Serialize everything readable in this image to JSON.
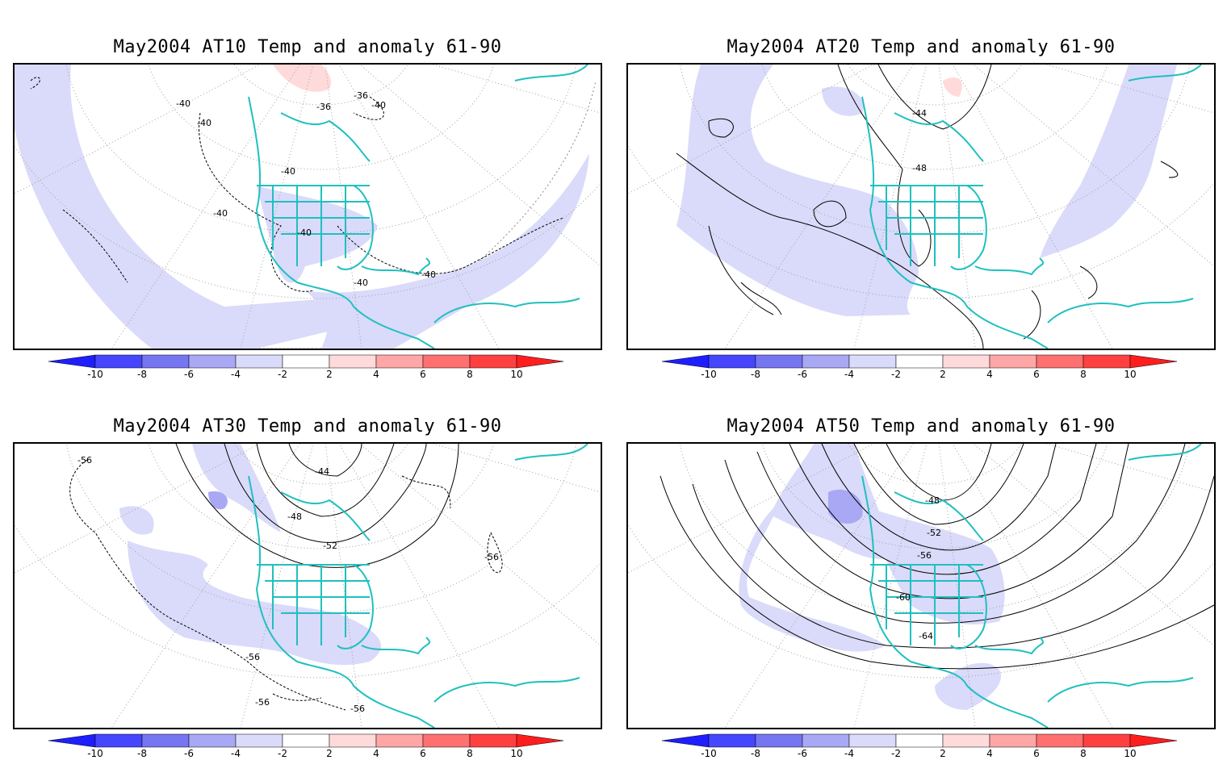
{
  "panels": [
    {
      "title": "May2004 AT10 Temp and anomaly 61-90",
      "contour_labels": [
        "-40",
        "-40",
        "-36",
        "-36",
        "-40",
        "-40",
        "-40",
        "-40",
        "-40",
        "-40"
      ]
    },
    {
      "title": "May2004 AT20 Temp and anomaly 61-90",
      "contour_labels": [
        "-44",
        "-48"
      ]
    },
    {
      "title": "May2004 AT30 Temp and anomaly 61-90",
      "contour_labels": [
        "-56",
        "-44",
        "-48",
        "-52",
        "-56",
        "-56",
        "-56",
        "-56"
      ]
    },
    {
      "title": "May2004 AT50 Temp and anomaly 61-90",
      "contour_labels": [
        "-48",
        "-52",
        "-56",
        "-60",
        "-64"
      ]
    }
  ],
  "colorbar": {
    "tick_labels": [
      "-10",
      "-8",
      "-6",
      "-4",
      "-2",
      "2",
      "4",
      "6",
      "8",
      "10"
    ],
    "colors": [
      "#1e1eff",
      "#4646ff",
      "#7676f2",
      "#a8a8f5",
      "#dadafa",
      "#ffffff",
      "#ffdada",
      "#ffa6a6",
      "#ff7070",
      "#ff4040",
      "#ff1e1e"
    ]
  },
  "colors": {
    "coastline": "#20c0c0",
    "anomaly_light_blue": "#dadafa",
    "anomaly_medium_blue": "#a8a8f5",
    "anomaly_light_red": "#ffdada",
    "contour": "#000000",
    "graticule": "#a0a0a0"
  }
}
